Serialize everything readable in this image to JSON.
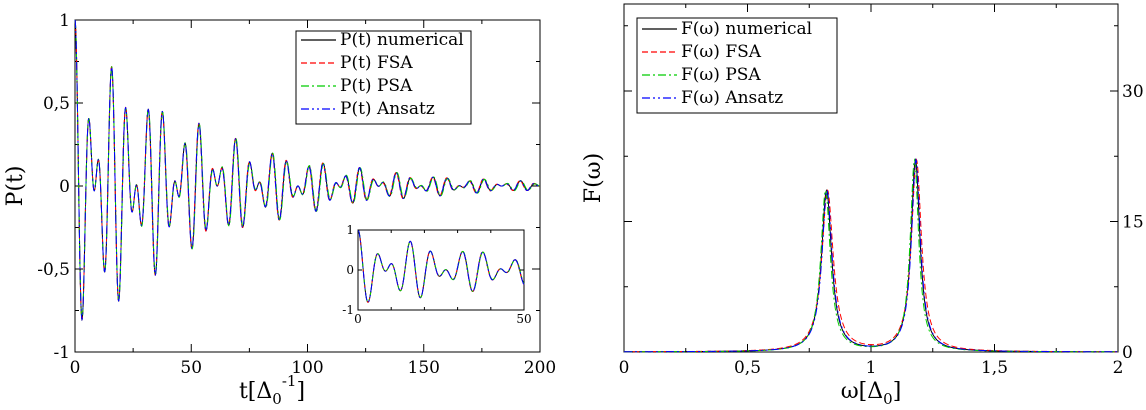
{
  "chart_data": [
    {
      "type": "line",
      "panel": "left",
      "ylabel": "P(t)",
      "xlabel_main": "t[Δ",
      "xlabel_sub": "0",
      "xlabel_sup": "-1",
      "xlabel_close": "]",
      "xlim": [
        0,
        200
      ],
      "ylim": [
        -1,
        1
      ],
      "xticks": [
        0,
        50,
        100,
        150,
        200
      ],
      "xtick_labels": [
        "0",
        "50",
        "100",
        "150",
        "200"
      ],
      "yticks": [
        -1,
        -0.5,
        0,
        0.5,
        1
      ],
      "ytick_labels": [
        "-1",
        "-0,5",
        "0",
        "0,5",
        "1"
      ],
      "legend_position": "top-right",
      "series": [
        {
          "name": "P(t) numerical",
          "color": "#000000",
          "dash": "solid"
        },
        {
          "name": "P(t) FSA",
          "color": "#ff0000",
          "dash": "dashed"
        },
        {
          "name": "P(t) PSA",
          "color": "#00cc00",
          "dash": "dash-dot"
        },
        {
          "name": "P(t) Ansatz",
          "color": "#0000ff",
          "dash": "dash-dot-dot"
        }
      ],
      "signal_model": {
        "description": "damped two-frequency beating oscillation",
        "omega1": 0.82,
        "omega2": 1.18,
        "amp1": 0.5,
        "amp2": 0.5,
        "gamma": 0.018,
        "peaks_sampled": [
          {
            "t": 0,
            "y": 1.0
          },
          {
            "t": 5,
            "y": 0.5
          },
          {
            "t": 17,
            "y": 0.64
          },
          {
            "t": 34,
            "y": 0.38
          },
          {
            "t": 51,
            "y": 0.25
          },
          {
            "t": 100,
            "y": 0.08
          },
          {
            "t": 200,
            "y": 0.0
          }
        ],
        "troughs_sampled": [
          {
            "t": 2.5,
            "y": -0.85
          },
          {
            "t": 11,
            "y": -0.47
          },
          {
            "t": 20,
            "y": -0.62
          },
          {
            "t": 200,
            "y": 0.0
          }
        ]
      },
      "inset": {
        "xlim": [
          0,
          50
        ],
        "ylim": [
          -1,
          1
        ],
        "xtick_labels": [
          "0",
          "50"
        ],
        "ytick_labels": [
          "-1",
          "0",
          "1"
        ]
      }
    },
    {
      "type": "line",
      "panel": "right",
      "ylabel": "F(ω)",
      "xlabel_main": "ω[Δ",
      "xlabel_sub": "0",
      "xlabel_close": "]",
      "xlim": [
        0,
        2
      ],
      "ylim": [
        0,
        40
      ],
      "xticks": [
        0,
        0.5,
        1,
        1.5,
        2
      ],
      "xtick_labels": [
        "0",
        "0,5",
        "1",
        "1,5",
        "2"
      ],
      "right_yticks": [
        0,
        15,
        30
      ],
      "right_ytick_labels": [
        "0",
        "15",
        "30"
      ],
      "legend_position": "top-left",
      "series": [
        {
          "name": "F(ω) numerical",
          "color": "#000000",
          "dash": "solid"
        },
        {
          "name": "F(ω) FSA",
          "color": "#ff0000",
          "dash": "dashed"
        },
        {
          "name": "F(ω) PSA",
          "color": "#00cc00",
          "dash": "dash-dot"
        },
        {
          "name": "F(ω) Ansatz",
          "color": "#0000ff",
          "dash": "dash-dot-dot"
        }
      ],
      "peaks": [
        {
          "omega": 0.82,
          "height": 18.5,
          "width": 0.025
        },
        {
          "omega": 1.18,
          "height": 22.0,
          "width": 0.022
        }
      ],
      "valley_value_at_1": 2.0
    }
  ]
}
